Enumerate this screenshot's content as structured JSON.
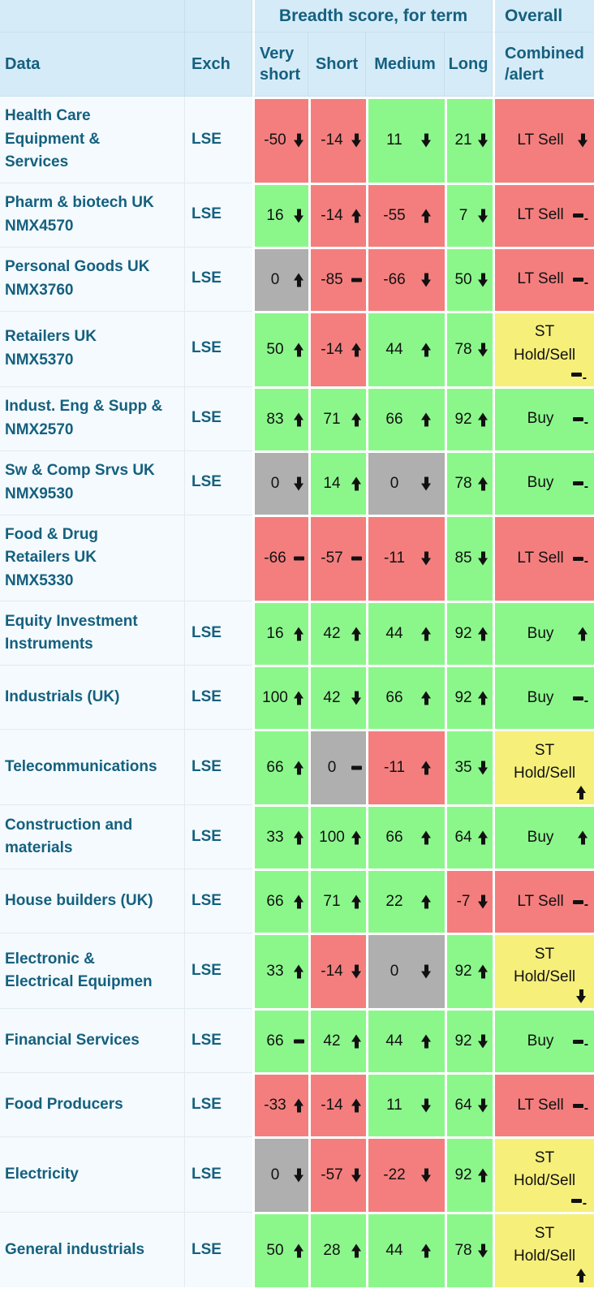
{
  "header": {
    "groups": {
      "breadth": "Breadth score, for term",
      "overall": "Overall"
    },
    "columns": {
      "data": "Data",
      "exch": "Exch",
      "very_short": "Very short",
      "short": "Short",
      "medium": "Medium",
      "long": "Long",
      "combined": "Combined /alert"
    }
  },
  "colors": {
    "positive": "#8BF78B",
    "negative": "#F47E7E",
    "neutral": "#AFAFAF",
    "warning": "#F6EF7A",
    "header_bg": "#D5EBF7",
    "label_bg": "#F4FAFD",
    "text_teal": "#15607F",
    "ink": "#111111"
  },
  "glyphs": {
    "hyphen": "-"
  },
  "rows": [
    {
      "name": "Health Care Equipment & Services",
      "exch": "LSE",
      "scores": [
        {
          "term": "very-short",
          "value": -50,
          "trend": "down",
          "state": "negative"
        },
        {
          "term": "short",
          "value": -14,
          "trend": "down",
          "state": "negative"
        },
        {
          "term": "medium",
          "value": 11,
          "trend": "down",
          "state": "positive"
        },
        {
          "term": "long",
          "value": 21,
          "trend": "down",
          "state": "positive"
        }
      ],
      "overall": {
        "label": "LT Sell",
        "trend": "down",
        "state": "negative"
      }
    },
    {
      "name": "Pharm & biotech UK NMX4570",
      "exch": "LSE",
      "scores": [
        {
          "term": "very-short",
          "value": 16,
          "trend": "down",
          "state": "positive"
        },
        {
          "term": "short",
          "value": -14,
          "trend": "up",
          "state": "negative"
        },
        {
          "term": "medium",
          "value": -55,
          "trend": "up",
          "state": "negative"
        },
        {
          "term": "long",
          "value": 7,
          "trend": "down",
          "state": "positive"
        }
      ],
      "overall": {
        "label": "LT Sell",
        "trend": "flat-minus",
        "state": "negative"
      }
    },
    {
      "name": "Personal Goods UK NMX3760",
      "exch": "LSE",
      "scores": [
        {
          "term": "very-short",
          "value": 0,
          "trend": "up",
          "state": "neutral"
        },
        {
          "term": "short",
          "value": -85,
          "trend": "flat",
          "state": "negative"
        },
        {
          "term": "medium",
          "value": -66,
          "trend": "down",
          "state": "negative"
        },
        {
          "term": "long",
          "value": 50,
          "trend": "down",
          "state": "positive"
        }
      ],
      "overall": {
        "label": "LT Sell",
        "trend": "flat-minus",
        "state": "negative"
      }
    },
    {
      "name": "Retailers UK NMX5370",
      "exch": "LSE",
      "scores": [
        {
          "term": "very-short",
          "value": 50,
          "trend": "up",
          "state": "positive"
        },
        {
          "term": "short",
          "value": -14,
          "trend": "up",
          "state": "negative"
        },
        {
          "term": "medium",
          "value": 44,
          "trend": "up",
          "state": "positive"
        },
        {
          "term": "long",
          "value": 78,
          "trend": "down",
          "state": "positive"
        }
      ],
      "overall": {
        "label": "ST Hold/Sell",
        "trend": "flat-minus",
        "state": "warning"
      }
    },
    {
      "name": "Indust. Eng & Supp & NMX2570",
      "exch": "LSE",
      "scores": [
        {
          "term": "very-short",
          "value": 83,
          "trend": "up",
          "state": "positive"
        },
        {
          "term": "short",
          "value": 71,
          "trend": "up",
          "state": "positive"
        },
        {
          "term": "medium",
          "value": 66,
          "trend": "up",
          "state": "positive"
        },
        {
          "term": "long",
          "value": 92,
          "trend": "up",
          "state": "positive"
        }
      ],
      "overall": {
        "label": "Buy",
        "trend": "flat-minus",
        "state": "positive"
      }
    },
    {
      "name": "Sw & Comp Srvs UK NMX9530",
      "exch": "LSE",
      "scores": [
        {
          "term": "very-short",
          "value": 0,
          "trend": "down",
          "state": "neutral"
        },
        {
          "term": "short",
          "value": 14,
          "trend": "up",
          "state": "positive"
        },
        {
          "term": "medium",
          "value": 0,
          "trend": "down",
          "state": "neutral"
        },
        {
          "term": "long",
          "value": 78,
          "trend": "up",
          "state": "positive"
        }
      ],
      "overall": {
        "label": "Buy",
        "trend": "flat-minus",
        "state": "positive"
      }
    },
    {
      "name": "Food & Drug Retailers UK NMX5330",
      "exch": "",
      "scores": [
        {
          "term": "very-short",
          "value": -66,
          "trend": "flat",
          "state": "negative"
        },
        {
          "term": "short",
          "value": -57,
          "trend": "flat",
          "state": "negative"
        },
        {
          "term": "medium",
          "value": -11,
          "trend": "down",
          "state": "negative"
        },
        {
          "term": "long",
          "value": 85,
          "trend": "down",
          "state": "positive"
        }
      ],
      "overall": {
        "label": "LT Sell",
        "trend": "flat-minus",
        "state": "negative"
      }
    },
    {
      "name": "Equity Investment Instruments",
      "exch": "LSE",
      "scores": [
        {
          "term": "very-short",
          "value": 16,
          "trend": "up",
          "state": "positive"
        },
        {
          "term": "short",
          "value": 42,
          "trend": "up",
          "state": "positive"
        },
        {
          "term": "medium",
          "value": 44,
          "trend": "up",
          "state": "positive"
        },
        {
          "term": "long",
          "value": 92,
          "trend": "up",
          "state": "positive"
        }
      ],
      "overall": {
        "label": "Buy",
        "trend": "up",
        "state": "positive"
      }
    },
    {
      "name": "Industrials (UK)",
      "exch": "LSE",
      "scores": [
        {
          "term": "very-short",
          "value": 100,
          "trend": "up",
          "state": "positive"
        },
        {
          "term": "short",
          "value": 42,
          "trend": "down",
          "state": "positive"
        },
        {
          "term": "medium",
          "value": 66,
          "trend": "up",
          "state": "positive"
        },
        {
          "term": "long",
          "value": 92,
          "trend": "up",
          "state": "positive"
        }
      ],
      "overall": {
        "label": "Buy",
        "trend": "flat-minus",
        "state": "positive"
      }
    },
    {
      "name": "Telecommunications",
      "exch": "LSE",
      "scores": [
        {
          "term": "very-short",
          "value": 66,
          "trend": "up",
          "state": "positive"
        },
        {
          "term": "short",
          "value": 0,
          "trend": "flat",
          "state": "neutral"
        },
        {
          "term": "medium",
          "value": -11,
          "trend": "up",
          "state": "negative"
        },
        {
          "term": "long",
          "value": 35,
          "trend": "down",
          "state": "positive"
        }
      ],
      "overall": {
        "label": "ST Hold/Sell",
        "trend": "up",
        "state": "warning"
      }
    },
    {
      "name": "Construction and materials",
      "exch": "LSE",
      "scores": [
        {
          "term": "very-short",
          "value": 33,
          "trend": "up",
          "state": "positive"
        },
        {
          "term": "short",
          "value": 100,
          "trend": "up",
          "state": "positive"
        },
        {
          "term": "medium",
          "value": 66,
          "trend": "up",
          "state": "positive"
        },
        {
          "term": "long",
          "value": 64,
          "trend": "up",
          "state": "positive"
        }
      ],
      "overall": {
        "label": "Buy",
        "trend": "up",
        "state": "positive"
      }
    },
    {
      "name": "House builders (UK)",
      "exch": "LSE",
      "scores": [
        {
          "term": "very-short",
          "value": 66,
          "trend": "up",
          "state": "positive"
        },
        {
          "term": "short",
          "value": 71,
          "trend": "up",
          "state": "positive"
        },
        {
          "term": "medium",
          "value": 22,
          "trend": "up",
          "state": "positive"
        },
        {
          "term": "long",
          "value": -7,
          "trend": "down",
          "state": "negative"
        }
      ],
      "overall": {
        "label": "LT Sell",
        "trend": "flat-minus",
        "state": "negative"
      }
    },
    {
      "name": "Electronic & Electrical Equipmen",
      "exch": "LSE",
      "scores": [
        {
          "term": "very-short",
          "value": 33,
          "trend": "up",
          "state": "positive"
        },
        {
          "term": "short",
          "value": -14,
          "trend": "down",
          "state": "negative"
        },
        {
          "term": "medium",
          "value": 0,
          "trend": "down",
          "state": "neutral"
        },
        {
          "term": "long",
          "value": 92,
          "trend": "up",
          "state": "positive"
        }
      ],
      "overall": {
        "label": "ST Hold/Sell",
        "trend": "down",
        "state": "warning"
      }
    },
    {
      "name": "Financial Services",
      "exch": "LSE",
      "scores": [
        {
          "term": "very-short",
          "value": 66,
          "trend": "flat",
          "state": "positive"
        },
        {
          "term": "short",
          "value": 42,
          "trend": "up",
          "state": "positive"
        },
        {
          "term": "medium",
          "value": 44,
          "trend": "up",
          "state": "positive"
        },
        {
          "term": "long",
          "value": 92,
          "trend": "down",
          "state": "positive"
        }
      ],
      "overall": {
        "label": "Buy",
        "trend": "flat-minus",
        "state": "positive"
      }
    },
    {
      "name": "Food Producers",
      "exch": "LSE",
      "scores": [
        {
          "term": "very-short",
          "value": -33,
          "trend": "up",
          "state": "negative"
        },
        {
          "term": "short",
          "value": -14,
          "trend": "up",
          "state": "negative"
        },
        {
          "term": "medium",
          "value": 11,
          "trend": "down",
          "state": "positive"
        },
        {
          "term": "long",
          "value": 64,
          "trend": "down",
          "state": "positive"
        }
      ],
      "overall": {
        "label": "LT Sell",
        "trend": "flat-minus",
        "state": "negative"
      }
    },
    {
      "name": "Electricity",
      "exch": "LSE",
      "scores": [
        {
          "term": "very-short",
          "value": 0,
          "trend": "down",
          "state": "neutral"
        },
        {
          "term": "short",
          "value": -57,
          "trend": "down",
          "state": "negative"
        },
        {
          "term": "medium",
          "value": -22,
          "trend": "down",
          "state": "negative"
        },
        {
          "term": "long",
          "value": 92,
          "trend": "up",
          "state": "positive"
        }
      ],
      "overall": {
        "label": "ST Hold/Sell",
        "trend": "flat-minus",
        "state": "warning"
      }
    },
    {
      "name": "General industrials",
      "exch": "LSE",
      "scores": [
        {
          "term": "very-short",
          "value": 50,
          "trend": "up",
          "state": "positive"
        },
        {
          "term": "short",
          "value": 28,
          "trend": "up",
          "state": "positive"
        },
        {
          "term": "medium",
          "value": 44,
          "trend": "up",
          "state": "positive"
        },
        {
          "term": "long",
          "value": 78,
          "trend": "down",
          "state": "positive"
        }
      ],
      "overall": {
        "label": "ST Hold/Sell",
        "trend": "up",
        "state": "warning"
      }
    }
  ]
}
